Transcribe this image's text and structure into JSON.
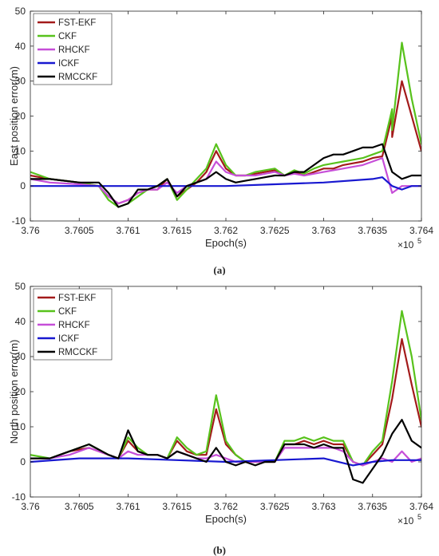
{
  "chart_data": [
    {
      "type": "line",
      "ylabel": "East position error(m)",
      "xlabel": "Epoch(s)",
      "x_exponent": "×10",
      "x_exponent_power": "5",
      "caption": "(a)",
      "xlim": [
        3.76,
        3.764
      ],
      "ylim": [
        -10,
        50
      ],
      "xticks": [
        "3.76",
        "3.7605",
        "3.761",
        "3.7615",
        "3.762",
        "3.7625",
        "3.763",
        "3.7635",
        "3.764"
      ],
      "yticks": [
        "-10",
        "0",
        "10",
        "20",
        "30",
        "40",
        "50"
      ],
      "legend_position": "top-left",
      "series": [
        {
          "name": "FST-EKF",
          "color": "#a31a1a",
          "x": [
            3.76,
            3.7602,
            3.7605,
            3.7607,
            3.7608,
            3.7609,
            3.761,
            3.7611,
            3.7612,
            3.7613,
            3.7614,
            3.7615,
            3.7616,
            3.7617,
            3.7618,
            3.7619,
            3.762,
            3.7621,
            3.7622,
            3.7623,
            3.7624,
            3.7625,
            3.7626,
            3.7627,
            3.7628,
            3.7629,
            3.763,
            3.7631,
            3.7632,
            3.7633,
            3.7634,
            3.7635,
            3.7636,
            3.7637,
            3.7637,
            3.7638,
            3.7639,
            3.764
          ],
          "y": [
            3,
            2,
            1,
            0,
            -3,
            -5,
            -4,
            -2,
            -1,
            -1,
            2,
            -3,
            -1,
            1,
            4,
            10,
            5,
            3,
            3,
            3.5,
            4,
            4.5,
            3,
            4,
            3,
            4,
            5,
            5,
            6,
            6.5,
            7,
            8,
            8.5,
            20,
            14,
            30,
            20,
            10
          ]
        },
        {
          "name": "CKF",
          "color": "#58c21c",
          "x": [
            3.76,
            3.7602,
            3.7605,
            3.7607,
            3.7608,
            3.7609,
            3.761,
            3.7611,
            3.7612,
            3.7613,
            3.7614,
            3.7615,
            3.7616,
            3.7617,
            3.7618,
            3.7619,
            3.762,
            3.7621,
            3.7622,
            3.7623,
            3.7624,
            3.7625,
            3.7626,
            3.7627,
            3.7628,
            3.7629,
            3.763,
            3.7631,
            3.7632,
            3.7633,
            3.7634,
            3.7635,
            3.7636,
            3.7637,
            3.7637,
            3.7638,
            3.7639,
            3.764
          ],
          "y": [
            4,
            2,
            1,
            0,
            -4,
            -6,
            -5,
            -3,
            -1,
            0,
            2,
            -4,
            -1,
            2,
            5,
            12,
            6,
            3,
            3,
            4,
            4.5,
            5,
            3,
            4.5,
            3.5,
            5,
            6,
            6.5,
            7,
            7.5,
            8,
            9,
            10,
            22,
            16,
            41,
            25,
            12
          ]
        },
        {
          "name": "RHCKF",
          "color": "#c64ed8",
          "x": [
            3.76,
            3.7602,
            3.7605,
            3.7607,
            3.7608,
            3.7609,
            3.761,
            3.7611,
            3.7612,
            3.7613,
            3.7614,
            3.7615,
            3.7616,
            3.7617,
            3.7618,
            3.7619,
            3.762,
            3.7621,
            3.7622,
            3.7623,
            3.7624,
            3.7625,
            3.7626,
            3.7627,
            3.7628,
            3.7629,
            3.763,
            3.7631,
            3.7632,
            3.7633,
            3.7634,
            3.7635,
            3.7636,
            3.7637,
            3.7638,
            3.7639,
            3.764
          ],
          "y": [
            2,
            1,
            0.5,
            0,
            -3,
            -5,
            -4,
            -2,
            -1,
            -1,
            1,
            -2,
            0,
            1,
            2,
            7,
            4,
            3,
            3,
            3,
            3.5,
            4,
            3,
            3.5,
            3,
            3.5,
            4,
            4.5,
            5,
            5.5,
            6,
            7,
            8,
            -2,
            0,
            0,
            0
          ]
        },
        {
          "name": "ICKF",
          "color": "#1818d0",
          "x": [
            3.76,
            3.7605,
            3.761,
            3.7615,
            3.762,
            3.7625,
            3.763,
            3.7635,
            3.7636,
            3.7637,
            3.7638,
            3.7639,
            3.764
          ],
          "y": [
            0,
            0,
            0,
            0,
            0,
            0.5,
            1,
            2,
            2.5,
            0,
            -1,
            0,
            0
          ]
        },
        {
          "name": "RMCCKF",
          "color": "#000000",
          "x": [
            3.76,
            3.7602,
            3.7605,
            3.7607,
            3.7608,
            3.7609,
            3.761,
            3.7611,
            3.7612,
            3.7613,
            3.7614,
            3.7615,
            3.7616,
            3.7617,
            3.7618,
            3.7619,
            3.762,
            3.7621,
            3.7622,
            3.7623,
            3.7624,
            3.7625,
            3.7626,
            3.7627,
            3.7628,
            3.7629,
            3.763,
            3.7631,
            3.7632,
            3.7633,
            3.7634,
            3.7635,
            3.7636,
            3.7637,
            3.7638,
            3.7639,
            3.764
          ],
          "y": [
            2,
            2,
            1,
            1,
            -2,
            -6,
            -5,
            -1,
            -1,
            0,
            2,
            -3,
            0,
            1,
            2,
            4,
            2,
            1,
            1.5,
            2,
            2.5,
            3,
            3,
            4,
            4,
            6,
            8,
            9,
            9,
            10,
            11,
            11,
            12,
            4,
            2,
            3,
            3
          ]
        }
      ]
    },
    {
      "type": "line",
      "ylabel": "North position error(m)",
      "xlabel": "Epoch(s)",
      "x_exponent": "×10",
      "x_exponent_power": "5",
      "caption": "(b)",
      "xlim": [
        3.76,
        3.764
      ],
      "ylim": [
        -10,
        50
      ],
      "xticks": [
        "3.76",
        "3.7605",
        "3.761",
        "3.7615",
        "3.762",
        "3.7625",
        "3.763",
        "3.7635",
        "3.764"
      ],
      "yticks": [
        "-10",
        "0",
        "10",
        "20",
        "30",
        "40",
        "50"
      ],
      "legend_position": "top-left",
      "series": [
        {
          "name": "FST-EKF",
          "color": "#a31a1a",
          "x": [
            3.76,
            3.7602,
            3.7604,
            3.7606,
            3.7608,
            3.7609,
            3.761,
            3.7611,
            3.7612,
            3.7613,
            3.7614,
            3.7615,
            3.7616,
            3.7617,
            3.7618,
            3.7619,
            3.762,
            3.7621,
            3.7622,
            3.7623,
            3.7624,
            3.7625,
            3.7626,
            3.7627,
            3.7628,
            3.7629,
            3.763,
            3.7631,
            3.7632,
            3.7633,
            3.7634,
            3.7635,
            3.7636,
            3.7637,
            3.7638,
            3.7639,
            3.764
          ],
          "y": [
            1,
            1,
            3,
            4,
            2,
            1,
            6,
            3,
            2,
            2,
            1,
            6,
            3,
            2,
            2,
            15,
            5,
            2,
            0,
            0,
            0,
            0,
            5,
            5,
            6,
            5,
            6,
            5,
            5,
            0,
            -1,
            2,
            5,
            18,
            35,
            22,
            10
          ]
        },
        {
          "name": "CKF",
          "color": "#58c21c",
          "x": [
            3.76,
            3.7602,
            3.7604,
            3.7606,
            3.7608,
            3.7609,
            3.761,
            3.7611,
            3.7612,
            3.7613,
            3.7614,
            3.7615,
            3.7616,
            3.7617,
            3.7618,
            3.7619,
            3.762,
            3.7621,
            3.7622,
            3.7623,
            3.7624,
            3.7625,
            3.7626,
            3.7627,
            3.7628,
            3.7629,
            3.763,
            3.7631,
            3.7632,
            3.7633,
            3.7634,
            3.7635,
            3.7636,
            3.7637,
            3.7638,
            3.7639,
            3.764
          ],
          "y": [
            2,
            1,
            3,
            5,
            2,
            1,
            7,
            4,
            2,
            2,
            1,
            7,
            4,
            2,
            3,
            19,
            6,
            2,
            0,
            0,
            0,
            0,
            6,
            6,
            7,
            6,
            7,
            6,
            6,
            0,
            -1,
            3,
            6,
            23,
            43,
            30,
            12
          ]
        },
        {
          "name": "RHCKF",
          "color": "#c64ed8",
          "x": [
            3.76,
            3.7602,
            3.7604,
            3.7606,
            3.7608,
            3.7609,
            3.761,
            3.7611,
            3.7612,
            3.7613,
            3.7614,
            3.7615,
            3.7616,
            3.7617,
            3.7618,
            3.7619,
            3.762,
            3.7621,
            3.7622,
            3.7623,
            3.7624,
            3.7625,
            3.7626,
            3.7627,
            3.7628,
            3.7629,
            3.763,
            3.7631,
            3.7632,
            3.7633,
            3.7634,
            3.7635,
            3.7636,
            3.7637,
            3.7638,
            3.7639,
            3.764
          ],
          "y": [
            1,
            1,
            2,
            4,
            2,
            1,
            3,
            2,
            2,
            2,
            1,
            3,
            2,
            1,
            1,
            2,
            1,
            0,
            0,
            0,
            0,
            0,
            4,
            4,
            4,
            4,
            4,
            4,
            3,
            0,
            -1,
            0,
            1,
            0,
            3,
            0,
            1
          ]
        },
        {
          "name": "ICKF",
          "color": "#1818d0",
          "x": [
            3.76,
            3.7605,
            3.761,
            3.7615,
            3.762,
            3.7625,
            3.763,
            3.7633,
            3.7635,
            3.7637,
            3.764
          ],
          "y": [
            0,
            1,
            1,
            0.5,
            0,
            0.5,
            1,
            -1,
            0,
            0.5,
            0.5
          ]
        },
        {
          "name": "RMCCKF",
          "color": "#000000",
          "x": [
            3.76,
            3.7602,
            3.7604,
            3.7606,
            3.7608,
            3.7609,
            3.761,
            3.7611,
            3.7612,
            3.7613,
            3.7614,
            3.7615,
            3.7616,
            3.7617,
            3.7618,
            3.7619,
            3.762,
            3.7621,
            3.7622,
            3.7623,
            3.7624,
            3.7625,
            3.7626,
            3.7627,
            3.7628,
            3.7629,
            3.763,
            3.7631,
            3.7632,
            3.7633,
            3.7634,
            3.7635,
            3.7636,
            3.7637,
            3.7638,
            3.7639,
            3.764
          ],
          "y": [
            1,
            1,
            3,
            5,
            2,
            1,
            9,
            3,
            2,
            2,
            1,
            3,
            2,
            1,
            0,
            4,
            0,
            -1,
            0,
            -1,
            0,
            0,
            5,
            5,
            5,
            4,
            5,
            4,
            4,
            -5,
            -6,
            -2,
            2,
            8,
            12,
            6,
            4
          ]
        }
      ]
    }
  ]
}
